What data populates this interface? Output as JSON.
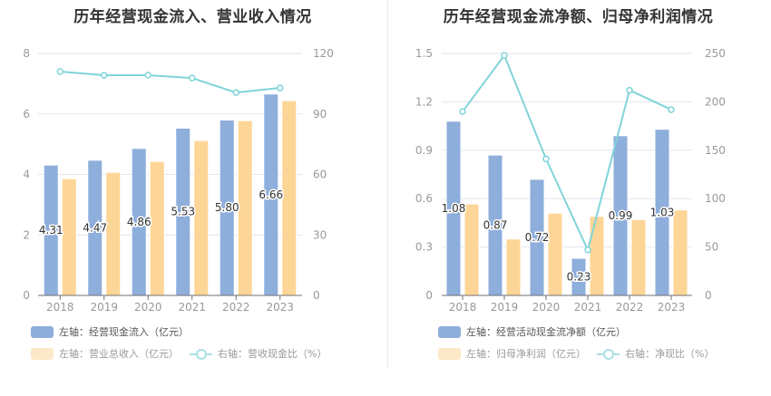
{
  "colors": {
    "bar_primary": "#8eaedb",
    "bar_secondary": "#fdd697",
    "line": "#80d4d8",
    "legend_primary": "#8eaedb",
    "legend_secondary": "#fde8c8",
    "legend_line": "#a8e0e3",
    "grid": "#e0e6f1",
    "axis_text": "#999999"
  },
  "chart_data": [
    {
      "type": "bar",
      "title": "历年经营现金流入、营业收入情况",
      "categories": [
        "2018",
        "2019",
        "2020",
        "2021",
        "2022",
        "2023"
      ],
      "y_left": {
        "ylim": [
          0,
          8
        ],
        "ticks": [
          "0",
          "2",
          "4",
          "6",
          "8"
        ]
      },
      "y_right": {
        "ylim": [
          0,
          120
        ],
        "ticks": [
          "0",
          "30",
          "60",
          "90",
          "120"
        ]
      },
      "grid": true,
      "legend_placement": "bottom-left",
      "series": [
        {
          "name": "左轴：经营现金流入（亿元）",
          "kind": "bar",
          "axis": "left",
          "values": [
            4.31,
            4.47,
            4.86,
            5.53,
            5.8,
            6.66
          ],
          "labels": [
            "4.31",
            "4.47",
            "4.86",
            "5.53",
            "5.80",
            "6.66"
          ]
        },
        {
          "name": "左轴：营业总收入（亿元）",
          "kind": "bar",
          "axis": "left",
          "values": [
            3.86,
            4.07,
            4.43,
            5.12,
            5.78,
            6.44
          ]
        },
        {
          "name": "右轴：营收现金比（%）",
          "kind": "line",
          "axis": "right",
          "values": [
            111.0,
            109.2,
            109.2,
            107.8,
            100.6,
            102.9
          ]
        }
      ]
    },
    {
      "type": "bar",
      "title": "历年经营现金流净额、归母净利润情况",
      "categories": [
        "2018",
        "2019",
        "2020",
        "2021",
        "2022",
        "2023"
      ],
      "y_left": {
        "ylim": [
          0,
          1.5
        ],
        "ticks": [
          "0",
          "0.3",
          "0.6",
          "0.9",
          "1.2",
          "1.5"
        ]
      },
      "y_right": {
        "ylim": [
          0,
          250
        ],
        "ticks": [
          "0",
          "50",
          "100",
          "150",
          "200",
          "250"
        ]
      },
      "grid": true,
      "legend_placement": "bottom-left",
      "series": [
        {
          "name": "左轴：经营活动现金流净额（亿元）",
          "kind": "bar",
          "axis": "left",
          "values": [
            1.08,
            0.87,
            0.72,
            0.23,
            0.99,
            1.03
          ],
          "labels": [
            "1.08",
            "0.87",
            "0.72",
            "0.23",
            "0.99",
            "1.03"
          ]
        },
        {
          "name": "左轴：归母净利润（亿元）",
          "kind": "bar",
          "axis": "left",
          "values": [
            0.567,
            0.35,
            0.51,
            0.49,
            0.47,
            0.53
          ]
        },
        {
          "name": "右轴：净现比（%）",
          "kind": "line",
          "axis": "right",
          "values": [
            190,
            248,
            141,
            47,
            212,
            192
          ]
        }
      ]
    }
  ],
  "legends": [
    {
      "bar1": "左轴：经营现金流入（亿元）",
      "bar2": "左轴：营业总收入（亿元）",
      "line": "右轴：营收现金比（%）"
    },
    {
      "bar1": "左轴：经营活动现金流净额（亿元）",
      "bar2": "左轴：归母净利润（亿元）",
      "line": "右轴：净现比（%）"
    }
  ]
}
